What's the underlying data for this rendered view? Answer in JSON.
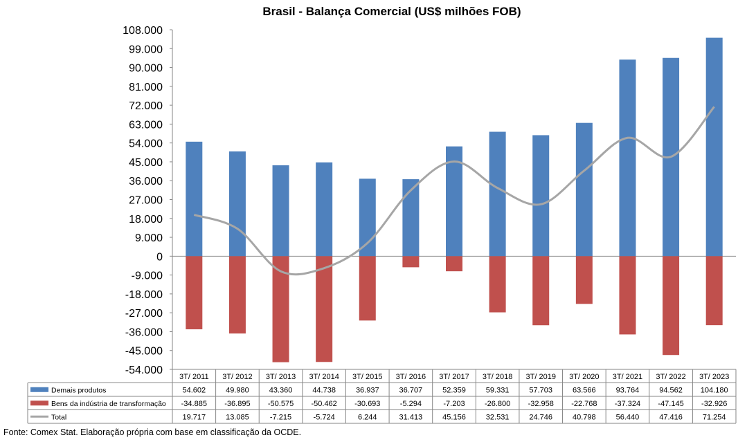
{
  "chart_data": {
    "type": "bar",
    "title": "Brasil - Balança Comercial (US$ milhões FOB)",
    "categories": [
      "3T/ 2011",
      "3T/ 2012",
      "3T/ 2013",
      "3T/ 2014",
      "3T/ 2015",
      "3T/ 2016",
      "3T/ 2017",
      "3T/ 2018",
      "3T/ 2019",
      "3T/ 2020",
      "3T/ 2021",
      "3T/ 2022",
      "3T/ 2023"
    ],
    "ylim": [
      -54000,
      108000
    ],
    "yticks": [
      108000,
      99000,
      90000,
      81000,
      72000,
      63000,
      54000,
      45000,
      36000,
      27000,
      18000,
      9000,
      0,
      -9000,
      -18000,
      -27000,
      -36000,
      -45000,
      -54000
    ],
    "ytick_labels": [
      "108.000",
      "99.000",
      "90.000",
      "81.000",
      "72.000",
      "63.000",
      "54.000",
      "45.000",
      "36.000",
      "27.000",
      "18.000",
      "9.000",
      "0",
      "-9.000",
      "-18.000",
      "-27.000",
      "-36.000",
      "-45.000",
      "-54.000"
    ],
    "series": [
      {
        "name": "Demais produtos",
        "kind": "bar",
        "color": "#4F81BD",
        "values": [
          54602,
          49980,
          43360,
          44738,
          36937,
          36707,
          52359,
          59331,
          57703,
          63566,
          93764,
          94562,
          104180
        ],
        "labels": [
          "54.602",
          "49.980",
          "43.360",
          "44.738",
          "36.937",
          "36.707",
          "52.359",
          "59.331",
          "57.703",
          "63.566",
          "93.764",
          "94.562",
          "104.180"
        ]
      },
      {
        "name": "Bens da indústria de transformação",
        "kind": "bar",
        "color": "#C0504D",
        "values": [
          -34885,
          -36895,
          -50575,
          -50462,
          -30693,
          -5294,
          -7203,
          -26800,
          -32958,
          -22768,
          -37324,
          -47145,
          -32926
        ],
        "labels": [
          "-34.885",
          "-36.895",
          "-50.575",
          "-50.462",
          "-30.693",
          "-5.294",
          "-7.203",
          "-26.800",
          "-32.958",
          "-22.768",
          "-37.324",
          "-47.145",
          "-32.926"
        ]
      },
      {
        "name": "Total",
        "kind": "line",
        "color": "#A6A6A6",
        "values": [
          19717,
          13085,
          -7215,
          -5724,
          6244,
          31413,
          45156,
          32531,
          24746,
          40798,
          56440,
          47416,
          71254
        ],
        "labels": [
          "19.717",
          "13.085",
          "-7.215",
          "-5.724",
          "6.244",
          "31.413",
          "45.156",
          "32.531",
          "24.746",
          "40.798",
          "56.440",
          "47.416",
          "71.254"
        ]
      }
    ],
    "legend": "data-table",
    "grid": false
  },
  "source": "Fonte: Comex Stat. Elaboração própria com base em classificação da OCDE."
}
